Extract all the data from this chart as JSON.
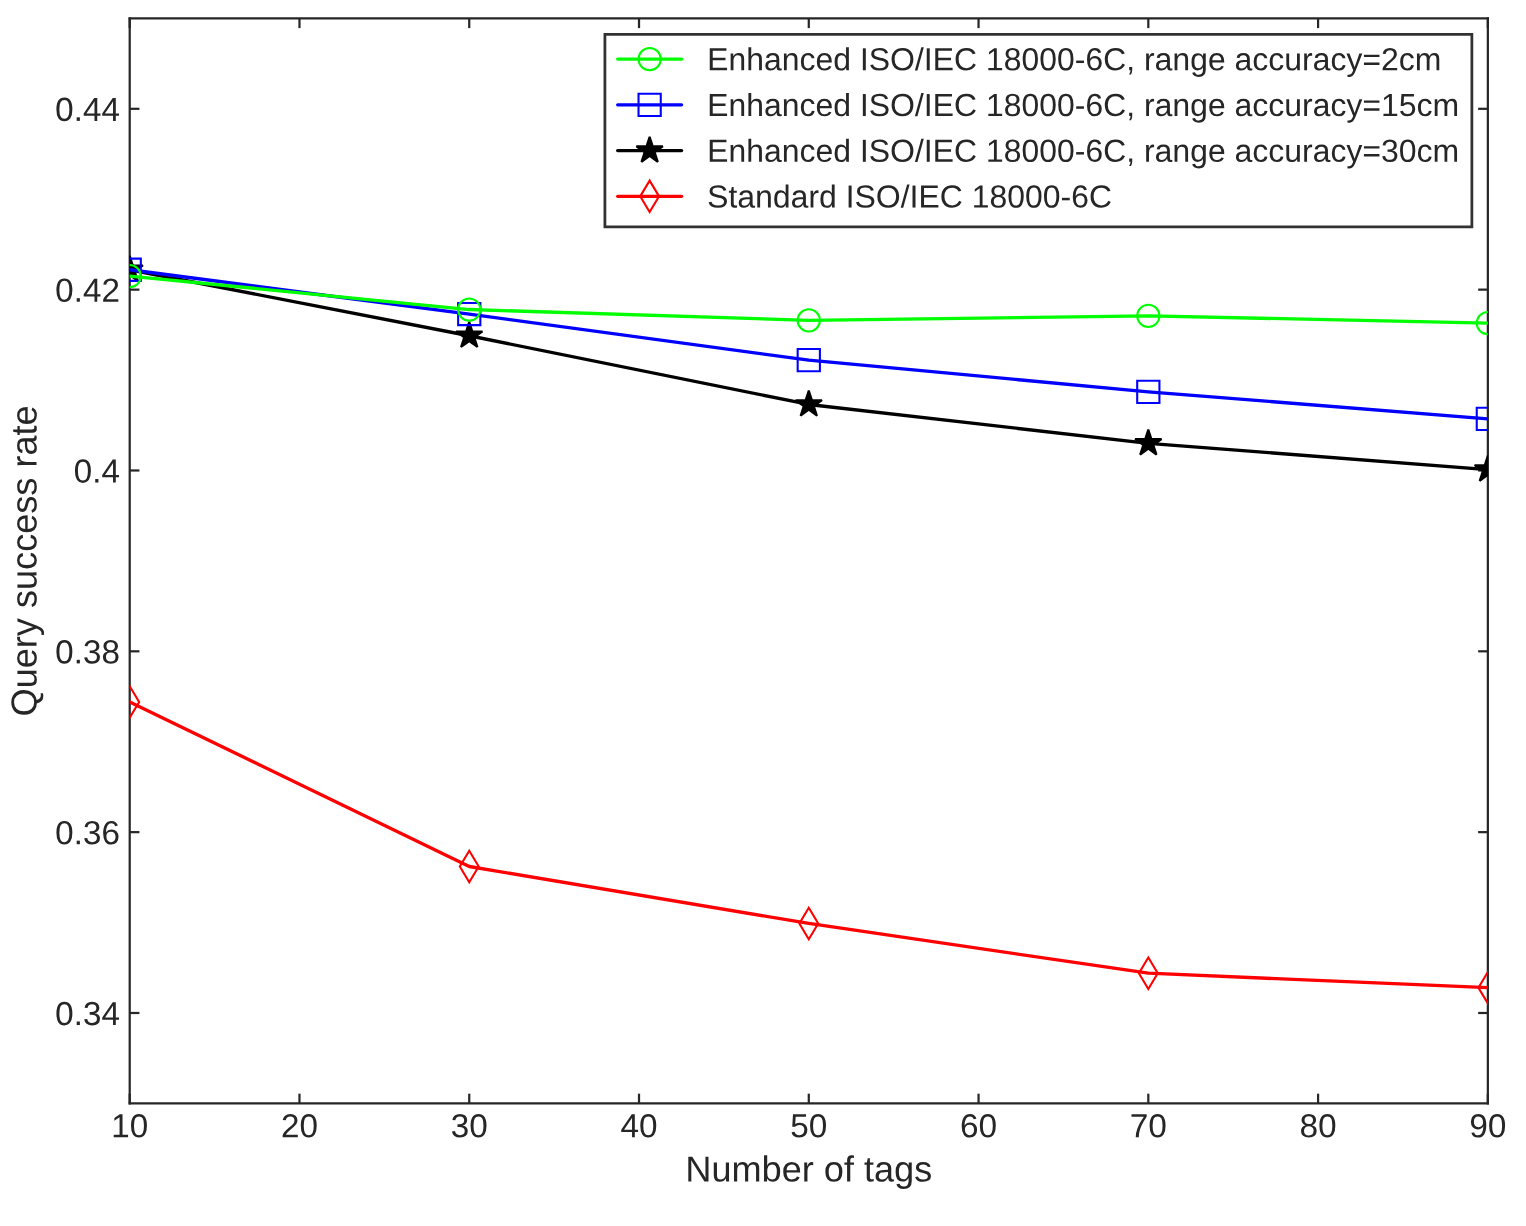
{
  "chart_data": {
    "type": "line",
    "xlabel": "Number of tags",
    "ylabel": "Query success rate",
    "x": [
      10,
      30,
      50,
      70,
      90
    ],
    "series": [
      {
        "name": "Enhanced ISO/IEC 18000-6C, range accuracy=2cm",
        "color": "#00ff00",
        "marker": "circle",
        "values": [
          0.4215,
          0.4178,
          0.4166,
          0.4171,
          0.4163
        ]
      },
      {
        "name": "Enhanced ISO/IEC 18000-6C, range accuracy=15cm",
        "color": "#0000ff",
        "marker": "square",
        "values": [
          0.4222,
          0.4173,
          0.4122,
          0.4087,
          0.4057
        ]
      },
      {
        "name": "Enhanced ISO/IEC 18000-6C, range accuracy=30cm",
        "color": "#000000",
        "marker": "star",
        "values": [
          0.4222,
          0.4149,
          0.4073,
          0.403,
          0.4001
        ]
      },
      {
        "name": "Standard ISO/IEC 18000-6C",
        "color": "#ff0000",
        "marker": "diamond",
        "values": [
          0.3744,
          0.3562,
          0.3499,
          0.3444,
          0.3428
        ]
      }
    ],
    "xlim": [
      10,
      90
    ],
    "xticks": [
      10,
      20,
      30,
      40,
      50,
      60,
      70,
      80,
      90
    ],
    "ylim": [
      0.33,
      0.45
    ],
    "yticks": [
      0.34,
      0.36,
      0.38,
      {
        "value": 0.4,
        "label": "0.4"
      },
      0.42,
      0.44
    ],
    "grid": false,
    "legend": "top right",
    "line_style": "solid"
  }
}
